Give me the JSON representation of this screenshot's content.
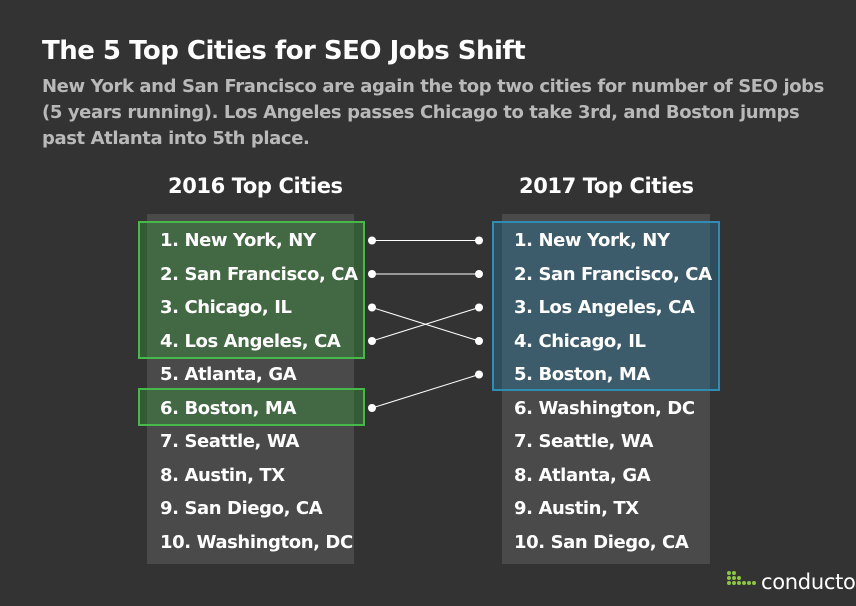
{
  "title": "The 5 Top Cities for SEO Jobs Shift",
  "subtitle": "New York and San Francisco are again the top two cities for number of SEO jobs (5 years running). Los Angeles passes Chicago to take 3rd, and Boston jumps past Atlanta into 5th place.",
  "left_column": {
    "heading": "2016 Top Cities",
    "items": [
      {
        "num": "1.",
        "city": "New York, NY"
      },
      {
        "num": "2.",
        "city": "San Francisco, CA"
      },
      {
        "num": "3.",
        "city": "Chicago, IL"
      },
      {
        "num": "4.",
        "city": "Los Angeles, CA"
      },
      {
        "num": "5.",
        "city": "Atlanta, GA"
      },
      {
        "num": "6.",
        "city": "Boston, MA"
      },
      {
        "num": "7.",
        "city": "Seattle, WA"
      },
      {
        "num": "8.",
        "city": "Austin, TX"
      },
      {
        "num": "9.",
        "city": "San Diego, CA"
      },
      {
        "num": "10.",
        "city": "Washington, DC"
      }
    ]
  },
  "right_column": {
    "heading": "2017 Top Cities",
    "items": [
      {
        "num": "1.",
        "city": "New York, NY"
      },
      {
        "num": "2.",
        "city": "San Francisco, CA"
      },
      {
        "num": "3.",
        "city": "Los Angeles, CA"
      },
      {
        "num": "4.",
        "city": "Chicago, IL"
      },
      {
        "num": "5.",
        "city": "Boston, MA"
      },
      {
        "num": "6.",
        "city": "Washington, DC"
      },
      {
        "num": "7.",
        "city": "Seattle, WA"
      },
      {
        "num": "8.",
        "city": "Atlanta, GA"
      },
      {
        "num": "9.",
        "city": "Austin, TX"
      },
      {
        "num": "10.",
        "city": "San Diego, CA"
      }
    ]
  },
  "connections": [
    {
      "from_rank": 1,
      "to_rank": 1
    },
    {
      "from_rank": 2,
      "to_rank": 2
    },
    {
      "from_rank": 3,
      "to_rank": 4
    },
    {
      "from_rank": 4,
      "to_rank": 3
    },
    {
      "from_rank": 6,
      "to_rank": 5
    }
  ],
  "highlights": {
    "left_groups": [
      [
        1,
        4
      ],
      [
        6,
        6
      ]
    ],
    "right_groups": [
      [
        1,
        5
      ]
    ]
  },
  "brand": {
    "name": "conductor",
    "mark": "·"
  },
  "colors": {
    "background": "#333333",
    "column": "#4a4a4a",
    "green_border": "#46b94a",
    "blue_border": "#2f8db5",
    "subtitle": "#b9b9b9",
    "logo_green": "#8dc63f"
  }
}
